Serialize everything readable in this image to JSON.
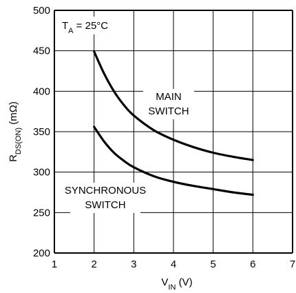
{
  "chart_data": {
    "type": "line",
    "title": "",
    "xlabel": {
      "main": "V",
      "sub": "IN",
      "suffix": " (V)"
    },
    "ylabel": {
      "main": "R",
      "sub": "DS(ON)",
      "suffix": " (mΩ)"
    },
    "xlim": [
      1,
      7
    ],
    "ylim": [
      200,
      500
    ],
    "xticks": [
      "1",
      "2",
      "3",
      "4",
      "5",
      "6",
      "7"
    ],
    "yticks": [
      "200",
      "250",
      "300",
      "350",
      "400",
      "450",
      "500"
    ],
    "grid": true,
    "condition": {
      "main": "T",
      "sub": "A",
      "suffix": " = 25°C"
    },
    "series": [
      {
        "name": "MAIN SWITCH",
        "label_lines": [
          "MAIN",
          "SWITCH"
        ],
        "x": [
          2,
          2.25,
          2.5,
          2.75,
          3,
          3.5,
          4,
          4.5,
          5,
          5.5,
          6
        ],
        "y": [
          449,
          422,
          400,
          383,
          370,
          352,
          340,
          331,
          324,
          319,
          315
        ]
      },
      {
        "name": "SYNCHRONOUS SWITCH",
        "label_lines": [
          "SYNCHRONOUS",
          "SWITCH"
        ],
        "x": [
          2,
          2.25,
          2.5,
          2.75,
          3,
          3.5,
          4,
          4.5,
          5,
          5.5,
          6
        ],
        "y": [
          356,
          338,
          324,
          314,
          306,
          295,
          288,
          283,
          279,
          275,
          272
        ]
      }
    ]
  }
}
